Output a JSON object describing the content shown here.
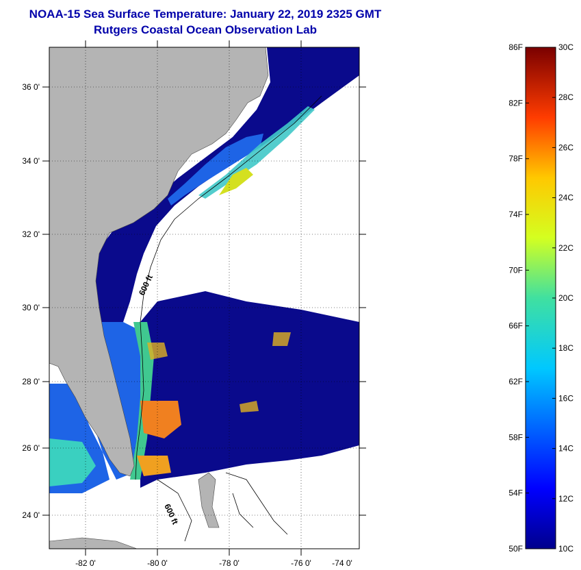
{
  "title_line1": "NOAA-15 Sea Surface Temperature:  January 22, 2019 2325 GMT",
  "title_line2": "Rutgers Coastal Ocean Observation Lab",
  "map": {
    "lat_labels": [
      "36 0'",
      "34 0'",
      "32 0'",
      "30 0'",
      "28 0'",
      "26 0'",
      "24 0'"
    ],
    "lon_labels": [
      "-82 0'",
      "-80 0'",
      "-78 0'",
      "-76 0'",
      "-74 0'"
    ],
    "contour_labels": [
      "600 ft",
      "600 ft"
    ],
    "colors": {
      "land": "#b4b4b4",
      "cloud": "#ffffff",
      "cold_water": "#0a0a8c",
      "shelf_water": "#1e64e6",
      "warm_water": "#f0a020"
    }
  },
  "colorbar": {
    "fahrenheit_labels": [
      "86F",
      "82F",
      "78F",
      "74F",
      "70F",
      "66F",
      "62F",
      "58F",
      "54F",
      "50F"
    ],
    "celsius_labels": [
      "30C",
      "28C",
      "26C",
      "24C",
      "22C",
      "20C",
      "18C",
      "16C",
      "14C",
      "12C",
      "10C"
    ],
    "range_c": [
      10,
      30
    ],
    "range_f": [
      50,
      86
    ]
  }
}
